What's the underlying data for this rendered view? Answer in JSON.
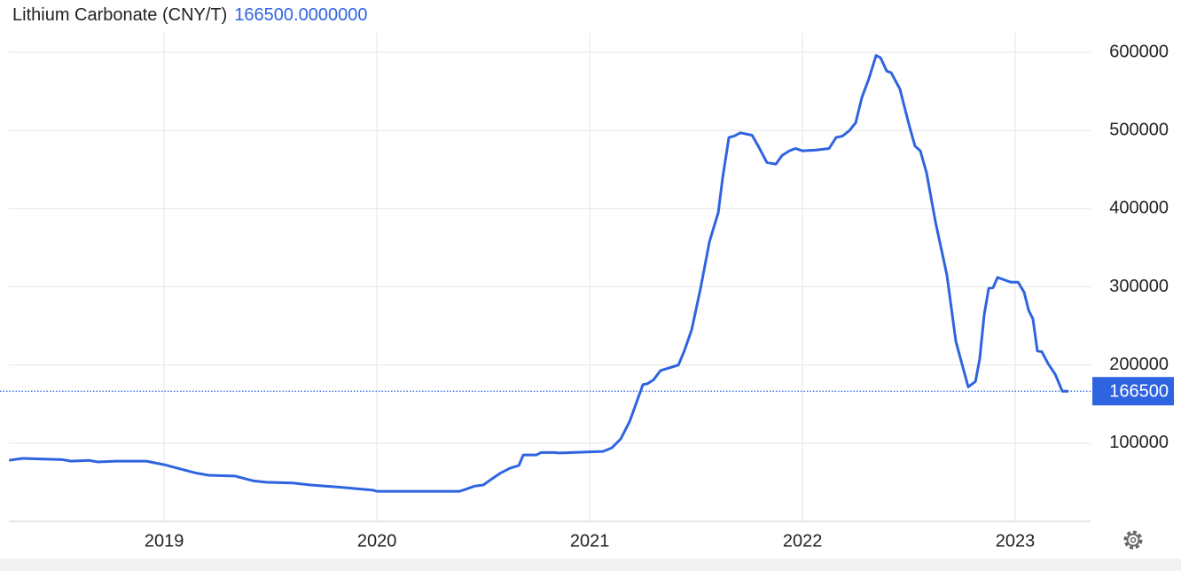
{
  "chart_data": {
    "type": "line",
    "title": "Lithium Carbonate (CNY/T)",
    "last_value_label": "166500.0000000",
    "last_value": 166500,
    "x": [
      2018.271,
      2018.333,
      2018.521,
      2018.563,
      2018.646,
      2018.688,
      2018.771,
      2018.917,
      2019.0,
      2019.063,
      2019.146,
      2019.208,
      2019.333,
      2019.417,
      2019.479,
      2019.604,
      2019.688,
      2019.813,
      2019.896,
      2019.979,
      2020.0,
      2020.229,
      2020.388,
      2020.417,
      2020.458,
      2020.5,
      2020.533,
      2020.583,
      2020.625,
      2020.667,
      2020.688,
      2020.75,
      2020.771,
      2020.833,
      2020.854,
      2021.063,
      2021.104,
      2021.146,
      2021.188,
      2021.229,
      2021.25,
      2021.271,
      2021.3,
      2021.333,
      2021.417,
      2021.446,
      2021.479,
      2021.521,
      2021.563,
      2021.604,
      2021.625,
      2021.654,
      2021.679,
      2021.708,
      2021.763,
      2021.792,
      2021.833,
      2021.875,
      2021.904,
      2021.938,
      2021.967,
      2022.0,
      2022.063,
      2022.125,
      2022.158,
      2022.188,
      2022.221,
      2022.25,
      2022.279,
      2022.313,
      2022.346,
      2022.367,
      2022.396,
      2022.417,
      2022.458,
      2022.5,
      2022.529,
      2022.554,
      2022.583,
      2022.625,
      2022.679,
      2022.721,
      2022.779,
      2022.813,
      2022.833,
      2022.854,
      2022.875,
      2022.896,
      2022.917,
      2022.958,
      2022.979,
      2023.013,
      2023.042,
      2023.063,
      2023.083,
      2023.104,
      2023.125,
      2023.154,
      2023.188,
      2023.221,
      2023.25
    ],
    "series": [
      {
        "name": "Lithium Carbonate",
        "color": "#2f64e0",
        "values": [
          78000,
          80500,
          79000,
          77000,
          78000,
          76000,
          77000,
          77000,
          72500,
          68000,
          62000,
          59000,
          58000,
          52000,
          50000,
          49000,
          46500,
          44000,
          42000,
          40000,
          38500,
          38500,
          38500,
          41000,
          45000,
          46500,
          53000,
          62000,
          68000,
          71500,
          85000,
          85000,
          88000,
          88000,
          87500,
          89500,
          94000,
          105500,
          128000,
          159000,
          175000,
          176000,
          181000,
          193000,
          200000,
          219000,
          245000,
          298000,
          358000,
          395000,
          440000,
          491000,
          493000,
          497000,
          494000,
          480000,
          459000,
          457000,
          468000,
          474000,
          477000,
          474000,
          475000,
          477000,
          491000,
          493000,
          500000,
          510000,
          542000,
          567000,
          596000,
          593000,
          576000,
          574000,
          553000,
          508000,
          480000,
          474000,
          446000,
          383000,
          315000,
          230000,
          172000,
          179000,
          208000,
          264000,
          298000,
          299000,
          312000,
          308000,
          306000,
          306000,
          293000,
          270000,
          259000,
          218000,
          217000,
          202000,
          188000,
          166500,
          166500
        ]
      }
    ],
    "xlim": [
      2018.27,
      2023.354
    ],
    "xticks": [
      2019,
      2020,
      2021,
      2022,
      2023
    ],
    "ylim": [
      0,
      625000
    ],
    "yticks": [
      100000,
      200000,
      300000,
      400000,
      500000,
      600000
    ],
    "grid": true
  }
}
